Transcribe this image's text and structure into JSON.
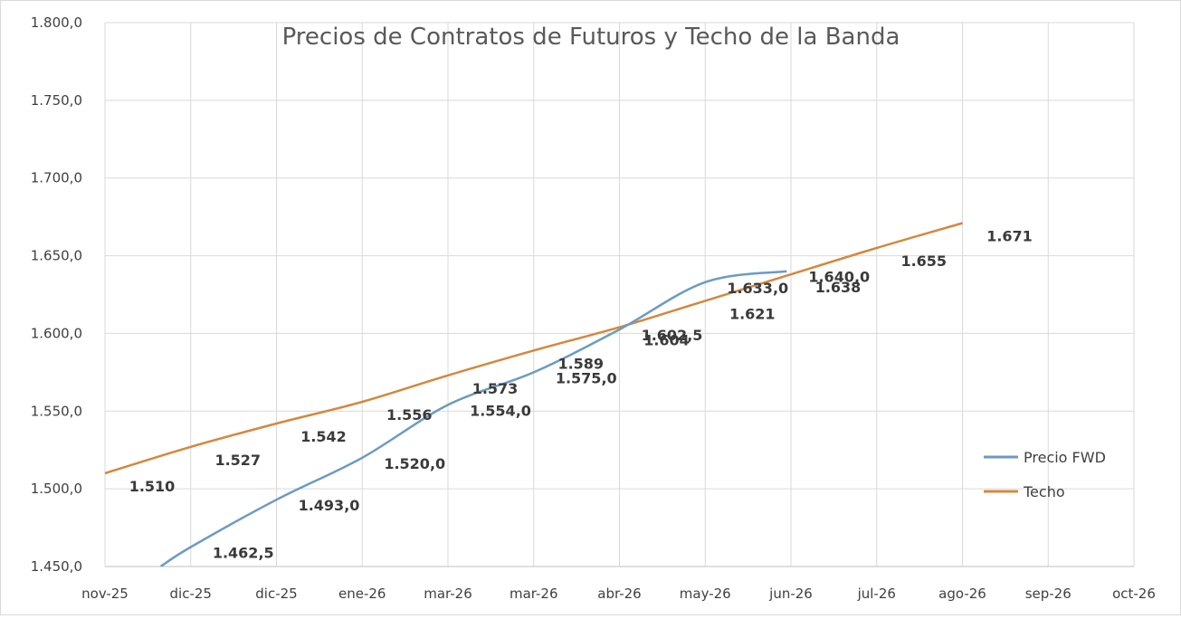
{
  "chart_data": {
    "type": "line",
    "title": "Precios de Contratos de Futuros y Techo de la Banda",
    "xlabel": "",
    "ylabel": "",
    "categories": [
      "nov-25",
      "dic-25",
      "dic-25",
      "ene-26",
      "mar-26",
      "mar-26",
      "abr-26",
      "may-26",
      "jun-26",
      "jul-26",
      "ago-26",
      "sep-26",
      "oct-26"
    ],
    "ylim": [
      1450,
      1800
    ],
    "y_ticks": [
      "1.450,0",
      "1.500,0",
      "1.550,0",
      "1.600,0",
      "1.650,0",
      "1.700,0",
      "1.750,0",
      "1.800,0"
    ],
    "grid": true,
    "legend_position": "right",
    "series": [
      {
        "name": "Precio FWD",
        "color": "#6b9bc3",
        "points": [
          {
            "x": 0.65,
            "y": 1450.0,
            "label": ""
          },
          {
            "x": 1.0,
            "y": 1462.5,
            "label": "1.462,5"
          },
          {
            "x": 2.0,
            "y": 1493.0,
            "label": "1.493,0"
          },
          {
            "x": 3.0,
            "y": 1520.0,
            "label": "1.520,0"
          },
          {
            "x": 4.0,
            "y": 1554.0,
            "label": "1.554,0"
          },
          {
            "x": 5.0,
            "y": 1575.0,
            "label": "1.575,0"
          },
          {
            "x": 6.0,
            "y": 1602.5,
            "label": "1.602,5"
          },
          {
            "x": 7.0,
            "y": 1633.0,
            "label": "1.633,0"
          },
          {
            "x": 7.95,
            "y": 1640.0,
            "label": "1.640,0"
          }
        ]
      },
      {
        "name": "Techo",
        "color": "#d4883e",
        "points": [
          {
            "x": 0.0,
            "y": 1510,
            "label": "1.510"
          },
          {
            "x": 1.0,
            "y": 1527,
            "label": "1.527"
          },
          {
            "x": 2.0,
            "y": 1542,
            "label": "1.542"
          },
          {
            "x": 3.0,
            "y": 1556,
            "label": "1.556"
          },
          {
            "x": 4.0,
            "y": 1573,
            "label": "1.573"
          },
          {
            "x": 5.0,
            "y": 1589,
            "label": "1.589"
          },
          {
            "x": 6.0,
            "y": 1604,
            "label": "1.604"
          },
          {
            "x": 7.0,
            "y": 1621,
            "label": "1.621"
          },
          {
            "x": 8.0,
            "y": 1638,
            "label": "1.638"
          },
          {
            "x": 9.0,
            "y": 1655,
            "label": "1.655"
          },
          {
            "x": 10.0,
            "y": 1671,
            "label": "1.671"
          }
        ]
      }
    ]
  }
}
